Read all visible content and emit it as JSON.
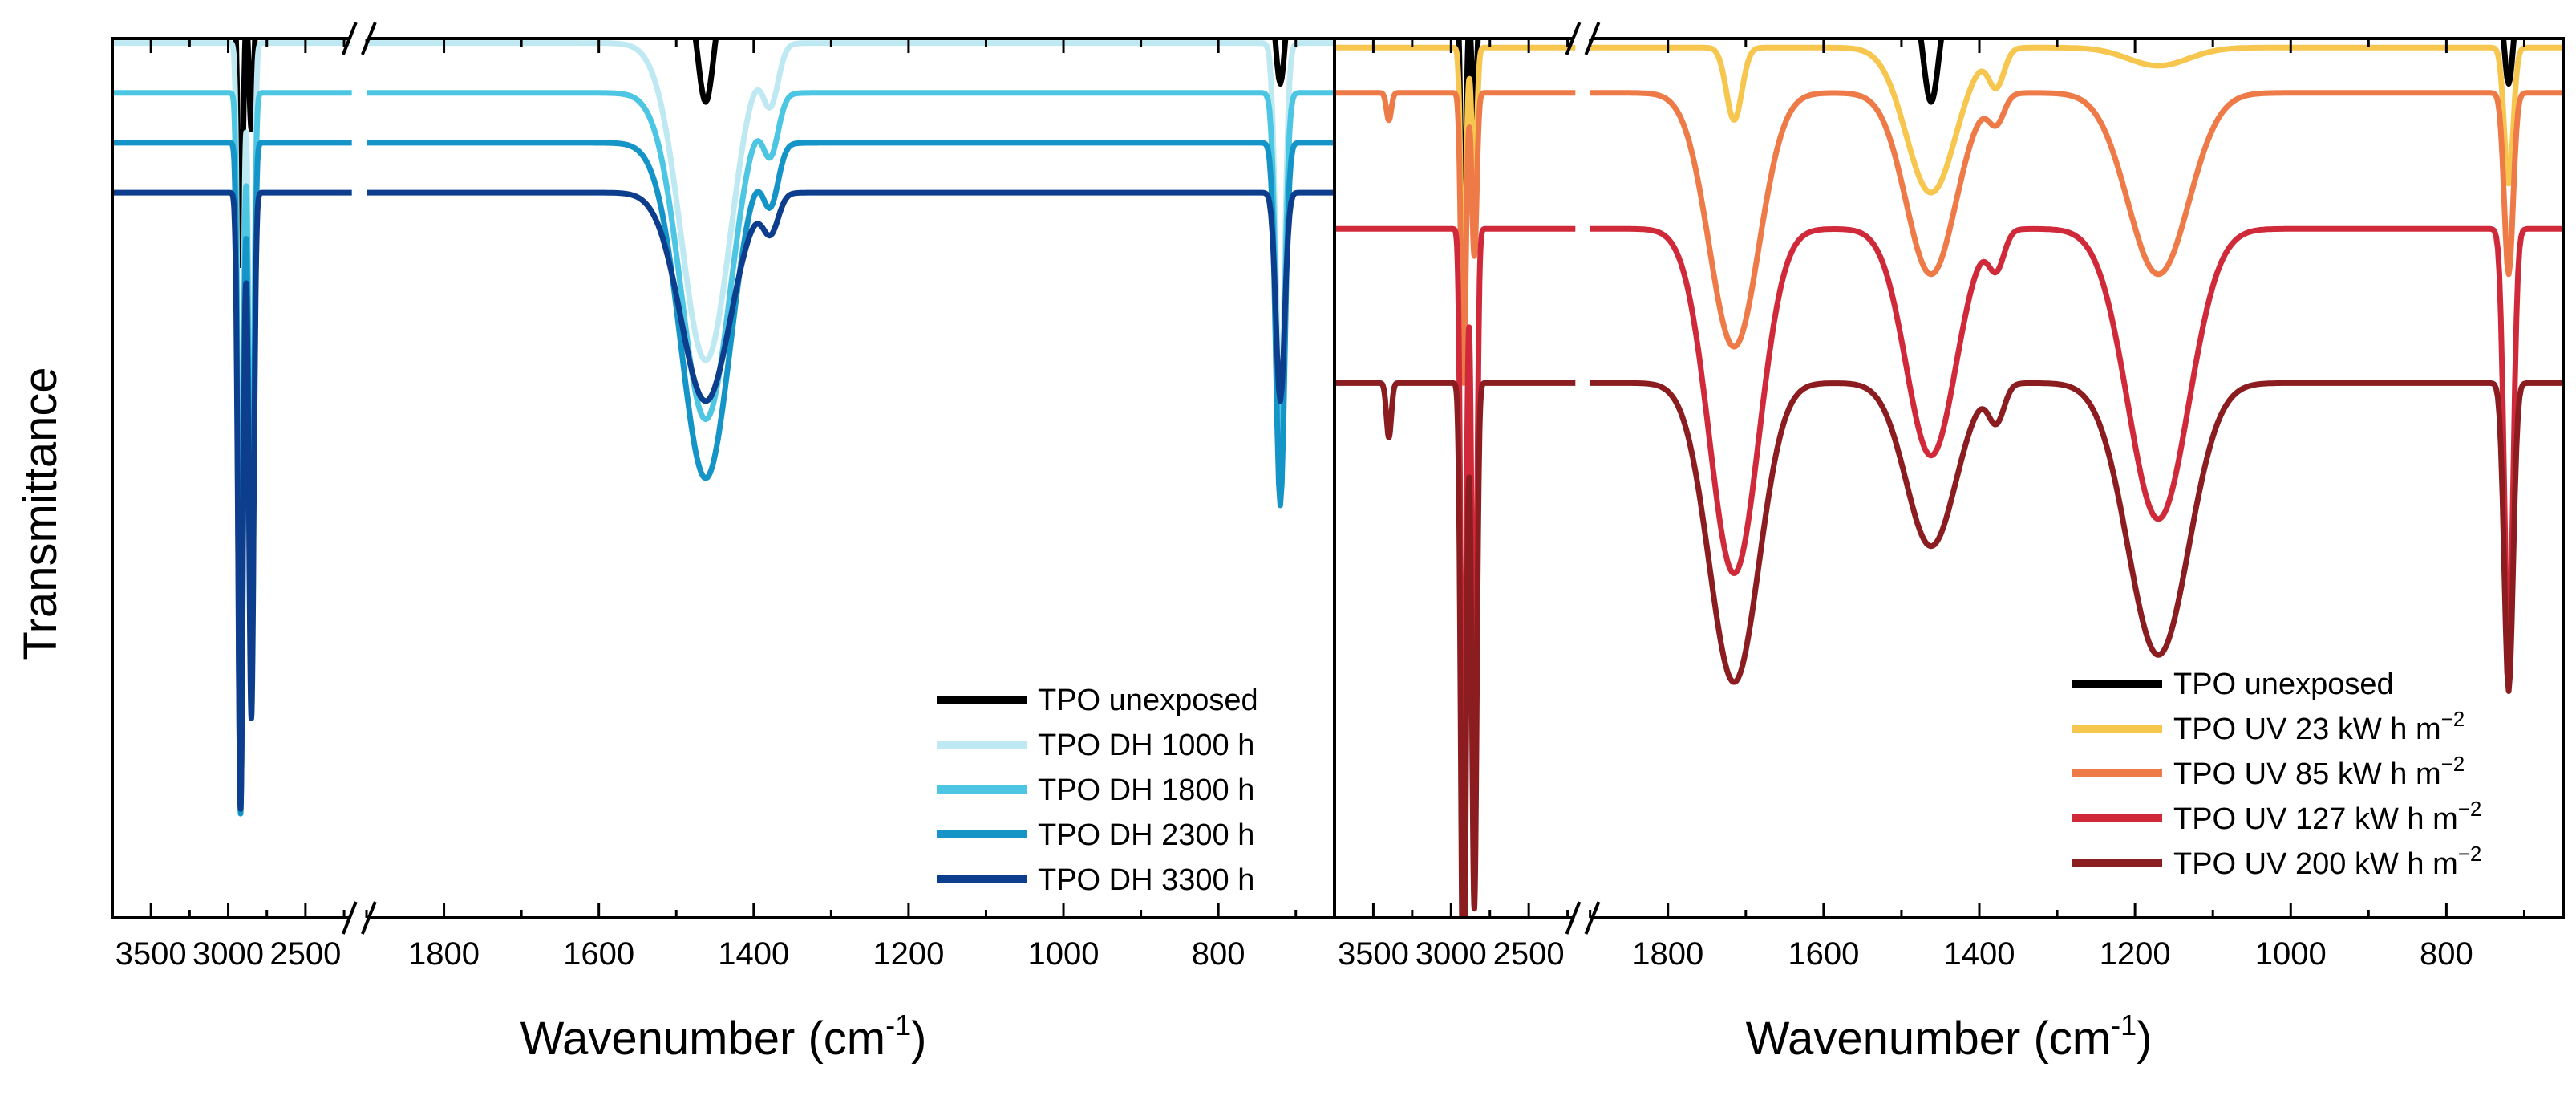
{
  "chart_data": [
    {
      "type": "line",
      "panel": "left",
      "ylabel": "Transmittance",
      "xlabel_main": "Wavenumber (cm",
      "xlabel_sup": "-1",
      "xlabel_close": ")",
      "xlim_high": [
        3750,
        2200
      ],
      "xlim_low": [
        1900,
        650
      ],
      "axis_break": true,
      "xticks_high": [
        3500,
        3000,
        2500
      ],
      "xticks_low": [
        1800,
        1600,
        1400,
        1200,
        1000,
        800
      ],
      "grid": false,
      "legend_position": "bottom-right",
      "series": [
        {
          "name": "TPO unexposed",
          "color": "#000000",
          "baseline": 1.0,
          "peaks": [
            [
              2920,
              0.3
            ],
            [
              2850,
              0.15
            ],
            [
              1462,
              0.12
            ],
            [
              1378,
              0.03
            ],
            [
              1100,
              0.02
            ],
            [
              720,
              0.1
            ]
          ]
        },
        {
          "name": "TPO DH 1000 h",
          "color": "#bfe9f2",
          "baseline": 0.945,
          "peaks": [
            [
              2920,
              0.7
            ],
            [
              2850,
              0.55
            ],
            [
              1462,
              0.35
            ],
            [
              1378,
              0.06
            ],
            [
              720,
              0.4
            ]
          ]
        },
        {
          "name": "TPO DH 1800 h",
          "color": "#4cc6e3",
          "baseline": 0.89,
          "peaks": [
            [
              2920,
              0.72
            ],
            [
              2850,
              0.58
            ],
            [
              1462,
              0.36
            ],
            [
              1378,
              0.06
            ],
            [
              720,
              0.4
            ]
          ]
        },
        {
          "name": "TPO DH 2300 h",
          "color": "#1594c8",
          "baseline": 0.835,
          "peaks": [
            [
              2920,
              0.74
            ],
            [
              2850,
              0.6
            ],
            [
              1462,
              0.37
            ],
            [
              1378,
              0.06
            ],
            [
              720,
              0.4
            ]
          ]
        },
        {
          "name": "TPO DH 3300 h",
          "color": "#0d3e8e",
          "baseline": 0.78,
          "peaks": [
            [
              2920,
              0.68
            ],
            [
              2850,
              0.58
            ],
            [
              1462,
              0.23
            ],
            [
              1378,
              0.04
            ],
            [
              720,
              0.23
            ]
          ]
        }
      ]
    },
    {
      "type": "line",
      "panel": "right",
      "xlabel_main": "Wavenumber (cm",
      "xlabel_sup": "-1",
      "xlabel_close": ")",
      "xlim_high": [
        3750,
        2200
      ],
      "xlim_low": [
        1900,
        650
      ],
      "axis_break": true,
      "xticks_high": [
        3500,
        3000,
        2500
      ],
      "xticks_low": [
        1800,
        1600,
        1400,
        1200,
        1000,
        800
      ],
      "grid": false,
      "legend_position": "bottom-right",
      "series": [
        {
          "name": "TPO unexposed",
          "color": "#000000",
          "baseline": 1.0,
          "peaks": [
            [
              2920,
              0.3
            ],
            [
              2850,
              0.15
            ],
            [
              1462,
              0.12
            ],
            [
              1378,
              0.03
            ],
            [
              720,
              0.1
            ]
          ]
        },
        {
          "name": "TPO UV 23 kW h m",
          "name_sup": "−2",
          "color": "#f6c64e",
          "baseline": 0.94,
          "peaks": [
            [
              2920,
              0.3
            ],
            [
              2850,
              0.16
            ],
            [
              1715,
              0.08
            ],
            [
              1462,
              0.16
            ],
            [
              1378,
              0.04
            ],
            [
              1170,
              0.02
            ],
            [
              720,
              0.15
            ]
          ]
        },
        {
          "name": "TPO UV 85 kW h m",
          "name_sup": "−2",
          "color": "#ee7a48",
          "baseline": 0.89,
          "peaks": [
            [
              3400,
              0.03
            ],
            [
              2920,
              0.32
            ],
            [
              2850,
              0.18
            ],
            [
              1715,
              0.28
            ],
            [
              1462,
              0.2
            ],
            [
              1378,
              0.03
            ],
            [
              1170,
              0.2
            ],
            [
              720,
              0.2
            ]
          ]
        },
        {
          "name": "TPO UV 127 kW h m",
          "name_sup": "−2",
          "color": "#d02a3a",
          "baseline": 0.74,
          "peaks": [
            [
              2920,
              0.75
            ],
            [
              2850,
              0.62
            ],
            [
              1715,
              0.38
            ],
            [
              1462,
              0.25
            ],
            [
              1378,
              0.04
            ],
            [
              1170,
              0.32
            ],
            [
              720,
              0.47
            ]
          ]
        },
        {
          "name": "TPO UV 200 kW h m",
          "name_sup": "−2",
          "color": "#8b1c20",
          "baseline": 0.57,
          "peaks": [
            [
              3400,
              0.06
            ],
            [
              2920,
              0.74
            ],
            [
              2850,
              0.58
            ],
            [
              1715,
              0.33
            ],
            [
              1462,
              0.18
            ],
            [
              1378,
              0.04
            ],
            [
              1170,
              0.3
            ],
            [
              720,
              0.34
            ]
          ]
        }
      ]
    }
  ]
}
